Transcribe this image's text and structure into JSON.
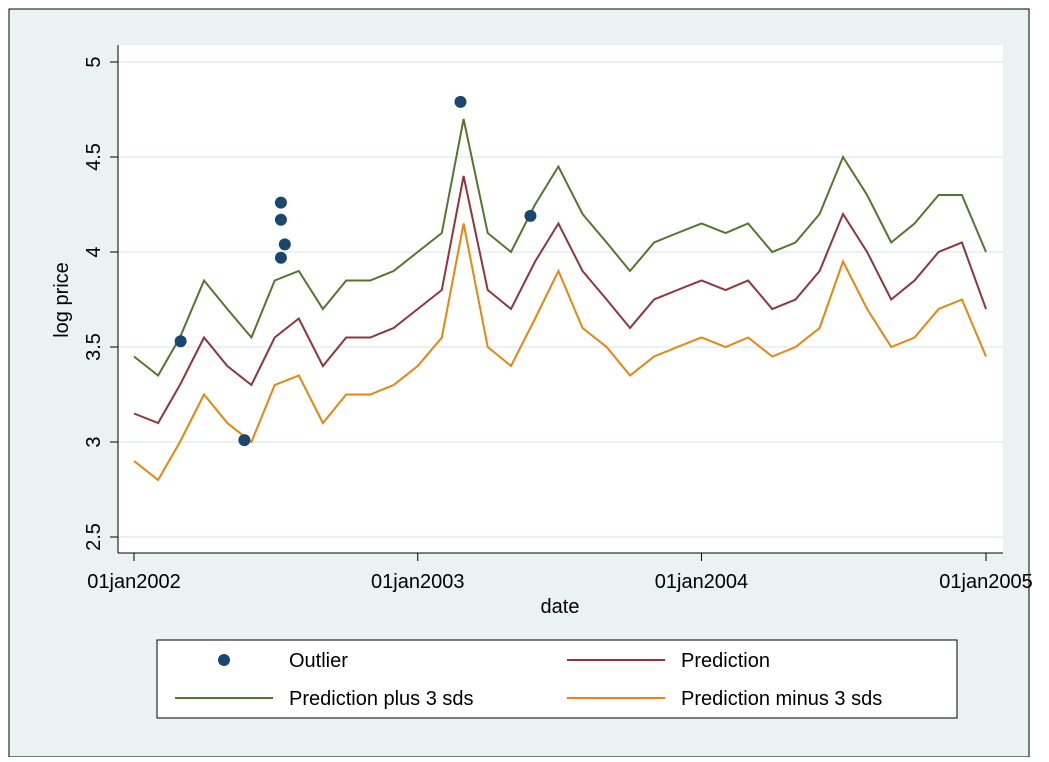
{
  "chart_data": {
    "type": "line",
    "x_label": "date",
    "y_label": "log price",
    "xlim": [
      "2002-01-01",
      "2005-01-01"
    ],
    "xticks": [
      {
        "value": "2002-01-01",
        "label": "01jan2002"
      },
      {
        "value": "2003-01-01",
        "label": "01jan2003"
      },
      {
        "value": "2004-01-01",
        "label": "01jan2004"
      },
      {
        "value": "2005-01-01",
        "label": "01jan2005"
      }
    ],
    "ylim": [
      2.5,
      5
    ],
    "yticks": [
      2.5,
      3,
      3.5,
      4,
      4.5,
      5
    ],
    "grid": true,
    "series": [
      {
        "name": "Outlier",
        "style": "marker",
        "color": "#1a476f",
        "x": [
          "2002-03-02",
          "2002-05-23",
          "2002-07-09",
          "2002-07-09",
          "2002-07-09",
          "2002-07-14",
          "2003-02-25",
          "2003-05-26"
        ],
        "values": [
          3.53,
          3.01,
          4.26,
          4.17,
          3.97,
          4.04,
          4.79,
          4.19
        ]
      },
      {
        "name": "Prediction",
        "style": "line",
        "color": "#90353b",
        "x": [
          "2002-01-01",
          "2002-02-01",
          "2002-03-01",
          "2002-04-01",
          "2002-05-01",
          "2002-06-01",
          "2002-07-01",
          "2002-08-01",
          "2002-09-01",
          "2002-10-01",
          "2002-11-01",
          "2002-12-01",
          "2003-01-01",
          "2003-02-01",
          "2003-03-01",
          "2003-04-01",
          "2003-05-01",
          "2003-06-01",
          "2003-07-01",
          "2003-08-01",
          "2003-09-01",
          "2003-10-01",
          "2003-11-01",
          "2003-12-01",
          "2004-01-01",
          "2004-02-01",
          "2004-03-01",
          "2004-04-01",
          "2004-05-01",
          "2004-06-01",
          "2004-07-01",
          "2004-08-01",
          "2004-09-01",
          "2004-10-01",
          "2004-11-01",
          "2004-12-01",
          "2005-01-01"
        ],
        "values": [
          3.15,
          3.1,
          3.3,
          3.55,
          3.4,
          3.3,
          3.55,
          3.65,
          3.4,
          3.55,
          3.55,
          3.6,
          3.7,
          3.8,
          4.4,
          3.8,
          3.7,
          3.95,
          4.15,
          3.9,
          3.75,
          3.6,
          3.75,
          3.8,
          3.85,
          3.8,
          3.85,
          3.7,
          3.75,
          3.9,
          4.2,
          4.0,
          3.75,
          3.85,
          4.0,
          4.05,
          3.7
        ]
      },
      {
        "name": "Prediction plus 3 sds",
        "style": "line",
        "color": "#55752f",
        "x": [
          "2002-01-01",
          "2002-02-01",
          "2002-03-01",
          "2002-04-01",
          "2002-05-01",
          "2002-06-01",
          "2002-07-01",
          "2002-08-01",
          "2002-09-01",
          "2002-10-01",
          "2002-11-01",
          "2002-12-01",
          "2003-01-01",
          "2003-02-01",
          "2003-03-01",
          "2003-04-01",
          "2003-05-01",
          "2003-06-01",
          "2003-07-01",
          "2003-08-01",
          "2003-09-01",
          "2003-10-01",
          "2003-11-01",
          "2003-12-01",
          "2004-01-01",
          "2004-02-01",
          "2004-03-01",
          "2004-04-01",
          "2004-05-01",
          "2004-06-01",
          "2004-07-01",
          "2004-08-01",
          "2004-09-01",
          "2004-10-01",
          "2004-11-01",
          "2004-12-01",
          "2005-01-01"
        ],
        "values": [
          3.45,
          3.35,
          3.55,
          3.85,
          3.7,
          3.55,
          3.85,
          3.9,
          3.7,
          3.85,
          3.85,
          3.9,
          4.0,
          4.1,
          4.7,
          4.1,
          4.0,
          4.25,
          4.45,
          4.2,
          4.05,
          3.9,
          4.05,
          4.1,
          4.15,
          4.1,
          4.15,
          4.0,
          4.05,
          4.2,
          4.5,
          4.3,
          4.05,
          4.15,
          4.3,
          4.3,
          4.0
        ]
      },
      {
        "name": "Prediction minus 3 sds",
        "style": "line",
        "color": "#e8850f",
        "x": [
          "2002-01-01",
          "2002-02-01",
          "2002-03-01",
          "2002-04-01",
          "2002-05-01",
          "2002-06-01",
          "2002-07-01",
          "2002-08-01",
          "2002-09-01",
          "2002-10-01",
          "2002-11-01",
          "2002-12-01",
          "2003-01-01",
          "2003-02-01",
          "2003-03-01",
          "2003-04-01",
          "2003-05-01",
          "2003-06-01",
          "2003-07-01",
          "2003-08-01",
          "2003-09-01",
          "2003-10-01",
          "2003-11-01",
          "2003-12-01",
          "2004-01-01",
          "2004-02-01",
          "2004-03-01",
          "2004-04-01",
          "2004-05-01",
          "2004-06-01",
          "2004-07-01",
          "2004-08-01",
          "2004-09-01",
          "2004-10-01",
          "2004-11-01",
          "2004-12-01",
          "2005-01-01"
        ],
        "values": [
          2.9,
          2.8,
          3.0,
          3.25,
          3.1,
          3.0,
          3.3,
          3.35,
          3.1,
          3.25,
          3.25,
          3.3,
          3.4,
          3.55,
          4.15,
          3.5,
          3.4,
          3.65,
          3.9,
          3.6,
          3.5,
          3.35,
          3.45,
          3.5,
          3.55,
          3.5,
          3.55,
          3.45,
          3.5,
          3.6,
          3.95,
          3.7,
          3.5,
          3.55,
          3.7,
          3.75,
          3.45
        ]
      }
    ]
  }
}
